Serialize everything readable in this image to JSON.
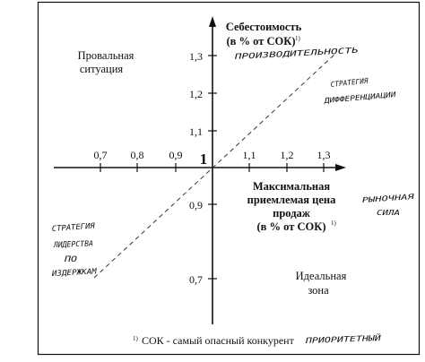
{
  "y_axis": {
    "title": "Себестоимость",
    "subtitle": "(в % от СОК)",
    "subtitle_sup": "1)",
    "upper_ticks": [
      "1,3",
      "1,2",
      "1,1"
    ],
    "lower_ticks": [
      "0,9",
      "0,7"
    ]
  },
  "x_axis": {
    "title_lines": [
      "Максимальная",
      "приемлемая цена",
      "продаж",
      "(в % от СОК)"
    ],
    "title_sup": "1)",
    "left_ticks": [
      "0,7",
      "0,8",
      "0,9"
    ],
    "right_ticks": [
      "1,1",
      "1,2",
      "1,3"
    ]
  },
  "origin_label": "1",
  "quadrants": {
    "top_left": [
      "Провальная",
      "ситуация"
    ],
    "bottom_right": [
      "Идеальная",
      "зона"
    ]
  },
  "handwritten": {
    "productivity": "ПРОИЗВОДИТЕЛЬНОСТЬ",
    "differentiation_strategy": [
      "СТРАТЕГИЯ",
      "ДИФФЕРЕНЦИАЦИИ"
    ],
    "leadership_strategy": [
      "СТРАТЕГИЯ",
      "ЛИДЕРСТВА",
      "ПО",
      "ИЗДЕРЖКАМ"
    ],
    "market_force": [
      "РЫНОЧНАЯ",
      "СИЛА"
    ],
    "priority": "ПРИОРИТЕТНЫЙ"
  },
  "footnote": {
    "marker": "1)",
    "text": "СОК - самый опасный конкурент"
  }
}
